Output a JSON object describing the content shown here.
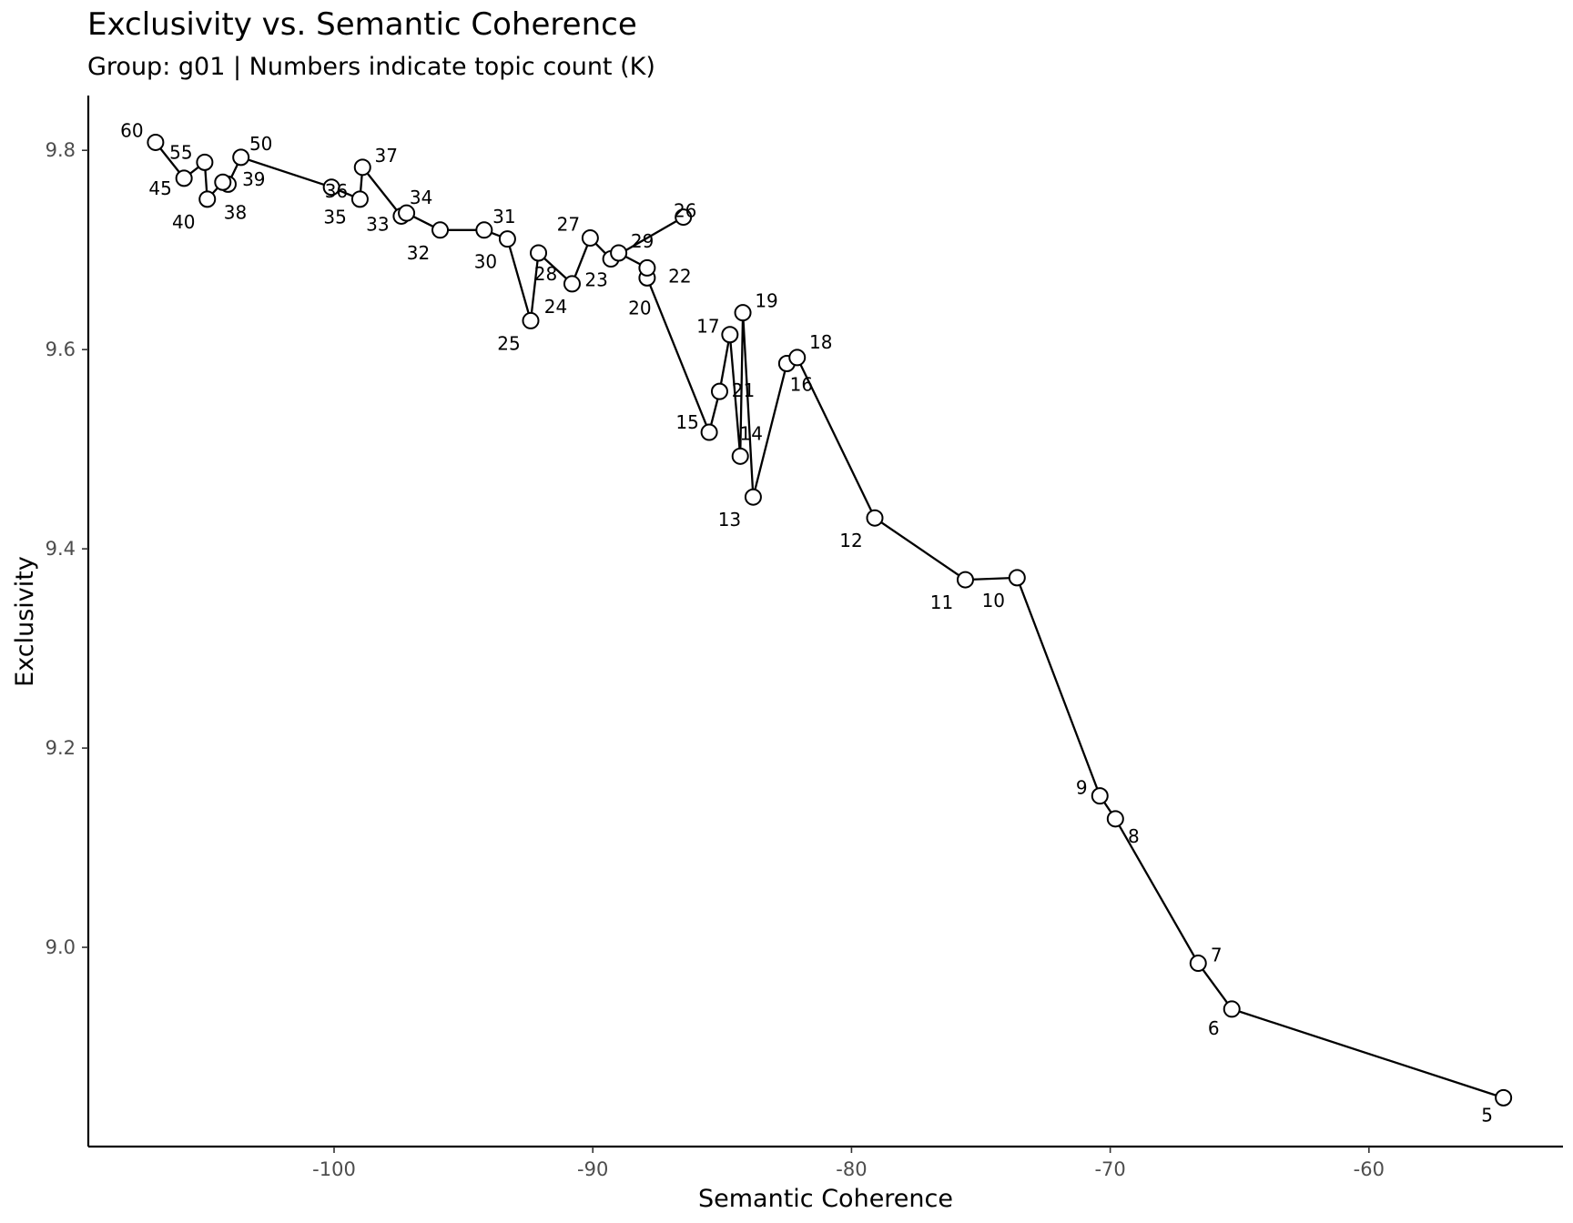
{
  "chart_data": {
    "type": "line",
    "title": "Exclusivity vs. Semantic Coherence",
    "subtitle": "Group: g01 | Numbers indicate topic count (K)",
    "xlabel": "Semantic Coherence",
    "ylabel": "Exclusivity",
    "xlim": [
      -109.5,
      -52.5
    ],
    "ylim": [
      8.8,
      9.855
    ],
    "x_ticks": [
      -100,
      -90,
      -80,
      -70,
      -60
    ],
    "y_ticks": [
      9.0,
      9.2,
      9.4,
      9.6,
      9.8
    ],
    "x_tick_labels": [
      "-100",
      "-90",
      "-80",
      "-70",
      "-60"
    ],
    "y_tick_labels": [
      "9.0",
      "9.2",
      "9.4",
      "9.6",
      "9.8"
    ],
    "grid": false,
    "legend": "none",
    "points": [
      {
        "k": "5",
        "x": -54.8,
        "y": 8.849
      },
      {
        "k": "6",
        "x": -65.3,
        "y": 8.938
      },
      {
        "k": "7",
        "x": -66.6,
        "y": 8.984
      },
      {
        "k": "8",
        "x": -69.8,
        "y": 9.129
      },
      {
        "k": "9",
        "x": -70.4,
        "y": 9.152
      },
      {
        "k": "10",
        "x": -73.6,
        "y": 9.371
      },
      {
        "k": "11",
        "x": -75.6,
        "y": 9.369
      },
      {
        "k": "12",
        "x": -79.1,
        "y": 9.431
      },
      {
        "k": "13",
        "x": -83.8,
        "y": 9.452
      },
      {
        "k": "14",
        "x": -84.3,
        "y": 9.493
      },
      {
        "k": "15",
        "x": -85.5,
        "y": 9.517
      },
      {
        "k": "16",
        "x": -82.5,
        "y": 9.586
      },
      {
        "k": "17",
        "x": -84.7,
        "y": 9.615
      },
      {
        "k": "18",
        "x": -82.1,
        "y": 9.592
      },
      {
        "k": "19",
        "x": -84.2,
        "y": 9.637
      },
      {
        "k": "20",
        "x": -87.9,
        "y": 9.672
      },
      {
        "k": "21",
        "x": -85.1,
        "y": 9.558
      },
      {
        "k": "22",
        "x": -87.9,
        "y": 9.682
      },
      {
        "k": "23",
        "x": -89.3,
        "y": 9.691
      },
      {
        "k": "24",
        "x": -90.8,
        "y": 9.666
      },
      {
        "k": "25",
        "x": -92.4,
        "y": 9.629
      },
      {
        "k": "26",
        "x": -86.5,
        "y": 9.733
      },
      {
        "k": "27",
        "x": -90.1,
        "y": 9.712
      },
      {
        "k": "28",
        "x": -92.1,
        "y": 9.697
      },
      {
        "k": "29",
        "x": -89.0,
        "y": 9.697
      },
      {
        "k": "30",
        "x": -93.3,
        "y": 9.711
      },
      {
        "k": "31",
        "x": -94.2,
        "y": 9.72
      },
      {
        "k": "32",
        "x": -95.9,
        "y": 9.72
      },
      {
        "k": "33",
        "x": -97.4,
        "y": 9.734
      },
      {
        "k": "34",
        "x": -97.2,
        "y": 9.737
      },
      {
        "k": "35",
        "x": -100.1,
        "y": 9.763
      },
      {
        "k": "36",
        "x": -99.0,
        "y": 9.751
      },
      {
        "k": "37",
        "x": -98.9,
        "y": 9.783
      },
      {
        "k": "38",
        "x": -104.1,
        "y": 9.766
      },
      {
        "k": "39",
        "x": -104.3,
        "y": 9.768
      },
      {
        "k": "40",
        "x": -104.9,
        "y": 9.751
      },
      {
        "k": "45",
        "x": -105.8,
        "y": 9.772
      },
      {
        "k": "50",
        "x": -103.6,
        "y": 9.793
      },
      {
        "k": "55",
        "x": -105.0,
        "y": 9.788
      },
      {
        "k": "60",
        "x": -106.9,
        "y": 9.808
      }
    ],
    "line_path": [
      [
        -54.8,
        8.849
      ],
      [
        -65.3,
        8.938
      ],
      [
        -66.6,
        8.984
      ],
      [
        -69.8,
        9.129
      ],
      [
        -70.4,
        9.152
      ],
      [
        -73.6,
        9.371
      ],
      [
        -75.6,
        9.369
      ],
      [
        -79.1,
        9.431
      ],
      [
        -82.1,
        9.592
      ],
      [
        -82.5,
        9.586
      ],
      [
        -83.8,
        9.452
      ],
      [
        -84.2,
        9.637
      ],
      [
        -84.3,
        9.493
      ],
      [
        -84.7,
        9.615
      ],
      [
        -85.1,
        9.558
      ],
      [
        -85.5,
        9.517
      ],
      [
        -87.9,
        9.672
      ],
      [
        -87.9,
        9.682
      ],
      [
        -89.0,
        9.697
      ],
      [
        -89.3,
        9.691
      ],
      [
        -86.5,
        9.733
      ],
      [
        -89.3,
        9.691
      ],
      [
        -90.1,
        9.712
      ],
      [
        -90.8,
        9.666
      ],
      [
        -92.1,
        9.697
      ],
      [
        -92.4,
        9.629
      ],
      [
        -93.3,
        9.711
      ],
      [
        -94.2,
        9.72
      ],
      [
        -95.9,
        9.72
      ],
      [
        -97.2,
        9.737
      ],
      [
        -97.4,
        9.734
      ],
      [
        -98.9,
        9.783
      ],
      [
        -99.0,
        9.751
      ],
      [
        -100.1,
        9.763
      ],
      [
        -103.6,
        9.793
      ],
      [
        -104.1,
        9.766
      ],
      [
        -104.3,
        9.768
      ],
      [
        -104.9,
        9.751
      ],
      [
        -105.0,
        9.788
      ],
      [
        -105.8,
        9.772
      ],
      [
        -106.9,
        9.808
      ]
    ]
  }
}
